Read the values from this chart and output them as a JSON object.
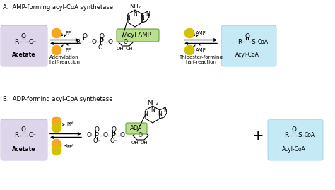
{
  "title_A": "A.  AMP-forming acyl-CoA synthetase",
  "title_B": "B.  ADP-forming acyl-CoA synthetase",
  "bg_color": "#ffffff",
  "acetate_box_color": "#ddd5ea",
  "acylcoa_box_color": "#c5eaf5",
  "acylamp_box_color": "#b8e08a",
  "adp_box_color": "#b8e08a",
  "atp_circle_color": "#f5a623",
  "coa_circle_color": "#d4c200",
  "adenylation_text": "Adenylation\nhalf-reaction",
  "thioester_text": "Thioester-forming\nhalf-reaction",
  "acetate_label": "Acetate",
  "acylcoa_label": "Acyl-CoA",
  "acylamp_label": "Acyl-AMP",
  "adp_label": "ADP"
}
